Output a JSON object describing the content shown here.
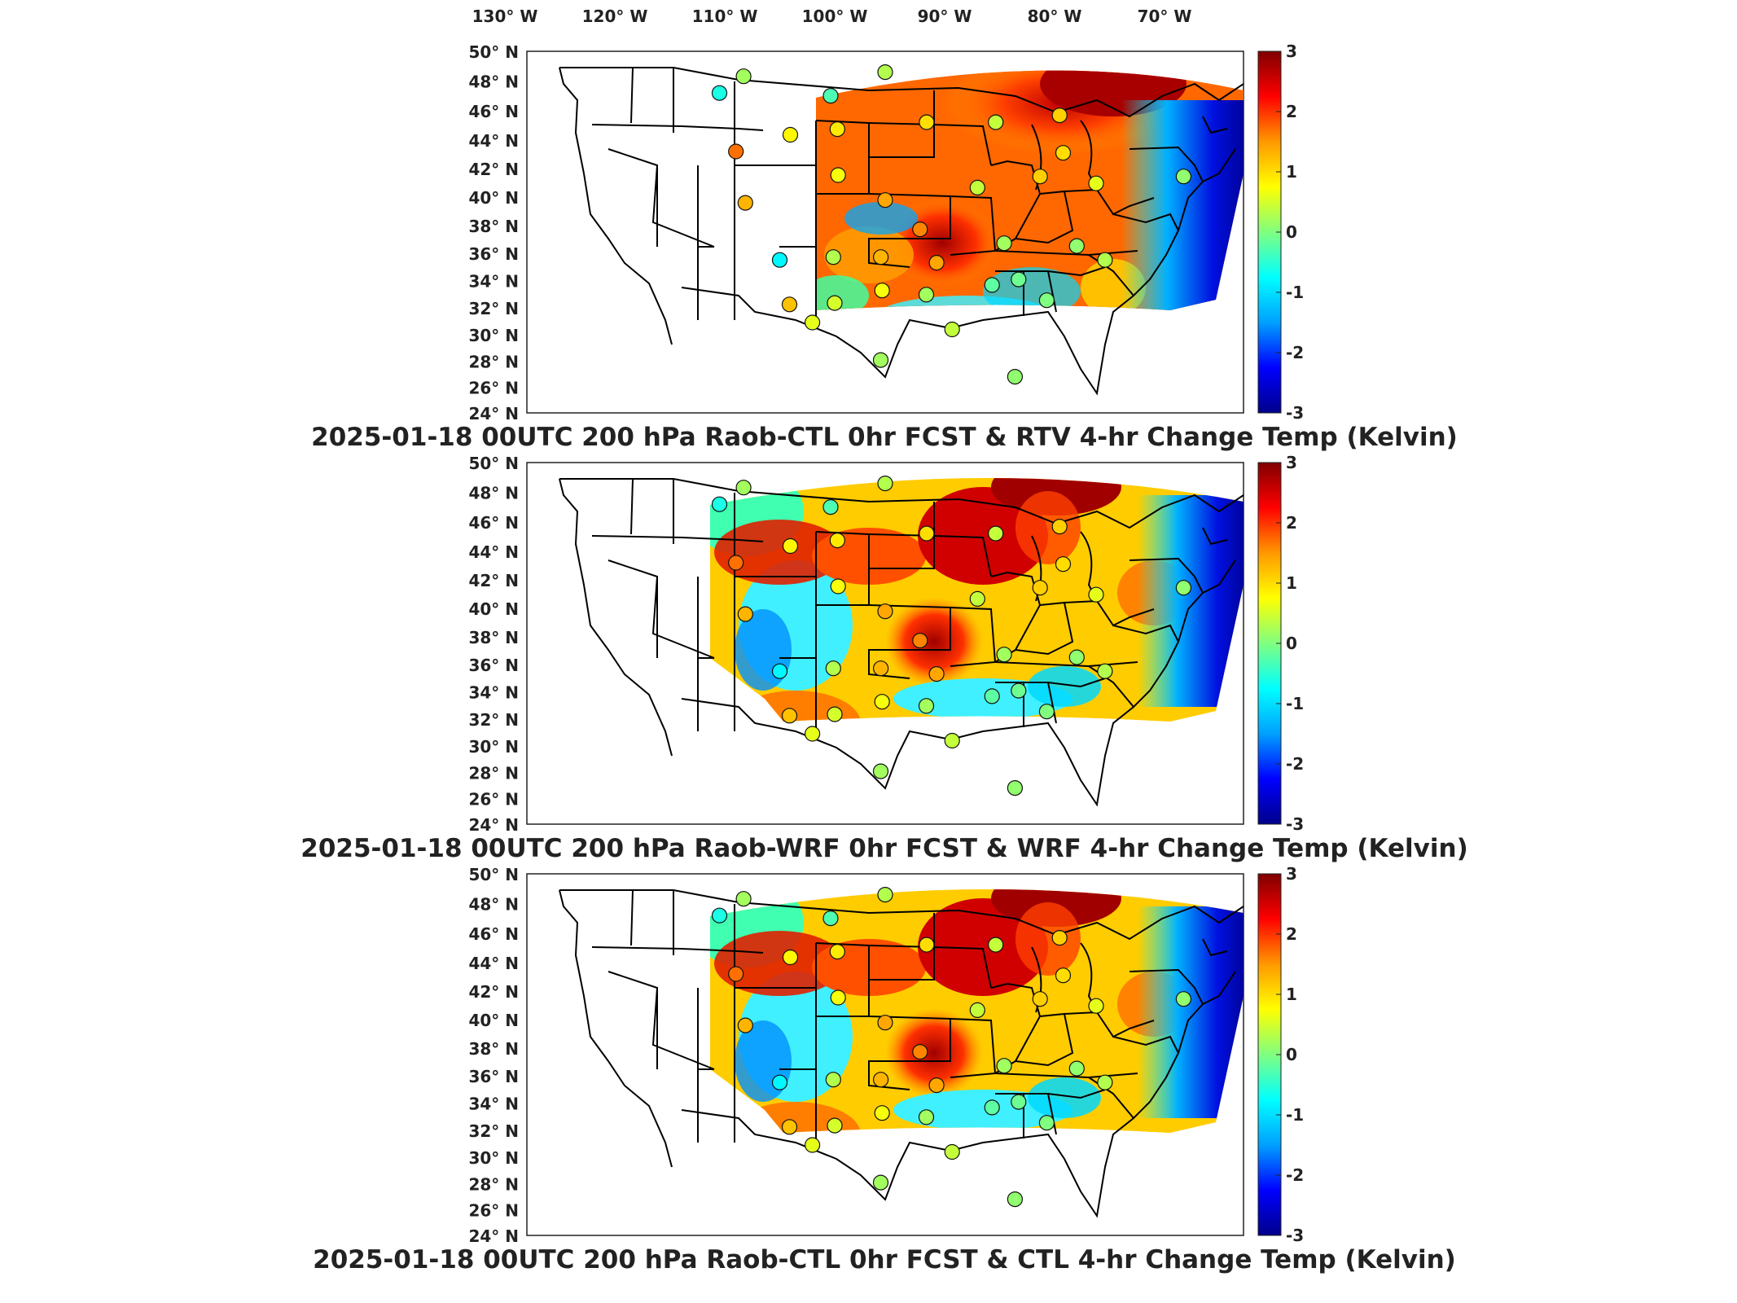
{
  "lon_labels": [
    "130° W",
    "120° W",
    "110° W",
    "100° W",
    "90° W",
    "80° W",
    "70° W"
  ],
  "lat_labels": [
    "50° N",
    "48° N",
    "46° N",
    "44° N",
    "42° N",
    "40° N",
    "38° N",
    "36° N",
    "34° N",
    "32° N",
    "30° N",
    "28° N",
    "26° N",
    "24° N"
  ],
  "colorbar": {
    "ticks": [
      "3",
      "2",
      "1",
      "0",
      "-1",
      "-2",
      "-3"
    ],
    "range": [
      -3,
      3
    ],
    "colormap": "jet",
    "stops": [
      "#00008b",
      "#0000ff",
      "#00a0ff",
      "#00ffff",
      "#80ff80",
      "#ffff00",
      "#ff9900",
      "#ff0000",
      "#800000"
    ]
  },
  "panels": [
    {
      "title": "2025-01-18 00UTC 200 hPa Raob-CTL 0hr FCST & RTV 4-hr Change Temp (Kelvin)"
    },
    {
      "title": "2025-01-18 00UTC 200 hPa Raob-WRF 0hr FCST & WRF 4-hr Change Temp (Kelvin)"
    },
    {
      "title": "2025-01-18 00UTC 200 hPa Raob-CTL 0hr FCST & CTL 4-hr Change Temp (Kelvin)"
    }
  ],
  "map": {
    "projection": "Lambert conformal, CONUS",
    "field_colors": {
      "panel1": [
        "#ff3a00",
        "#ff6000",
        "#c00000",
        "#ffb000",
        "#60ffa0"
      ],
      "panel2": [
        "#ffcc00",
        "#ff7a00",
        "#d00000",
        "#40ffc0",
        "#00d8ff"
      ],
      "panel3": [
        "#ffcc00",
        "#ff7a00",
        "#d00000",
        "#40ffc0",
        "#00d8ff"
      ]
    },
    "stations": [
      {
        "lon": -106.6,
        "lat": 48.2,
        "values": [
          0.2,
          0.2,
          0.2
        ]
      },
      {
        "lon": -108.5,
        "lat": 47.0,
        "values": [
          -0.6,
          -0.6,
          -0.6
        ]
      },
      {
        "lon": -100.8,
        "lat": 46.8,
        "values": [
          -0.3,
          -0.3,
          -0.3
        ]
      },
      {
        "lon": -97.0,
        "lat": 48.5,
        "values": [
          0.3,
          0.3,
          0.3
        ]
      },
      {
        "lon": -104.0,
        "lat": 44.0,
        "values": [
          0.8,
          0.8,
          0.8
        ]
      },
      {
        "lon": -108.3,
        "lat": 42.8,
        "values": [
          1.7,
          1.7,
          1.7
        ]
      },
      {
        "lon": -100.5,
        "lat": 44.4,
        "values": [
          0.9,
          0.9,
          0.9
        ]
      },
      {
        "lon": -94.0,
        "lat": 44.9,
        "values": [
          1.0,
          1.0,
          1.0
        ]
      },
      {
        "lon": -89.0,
        "lat": 44.9,
        "values": [
          0.4,
          0.4,
          0.4
        ]
      },
      {
        "lon": -84.5,
        "lat": 45.4,
        "values": [
          1.1,
          1.1,
          1.1
        ]
      },
      {
        "lon": -83.5,
        "lat": 42.7,
        "values": [
          1.0,
          1.0,
          1.0
        ]
      },
      {
        "lon": -100.7,
        "lat": 41.1,
        "values": [
          0.7,
          0.7,
          0.7
        ]
      },
      {
        "lon": -108.5,
        "lat": 39.1,
        "values": [
          1.3,
          1.3,
          1.3
        ]
      },
      {
        "lon": -97.0,
        "lat": 39.3,
        "values": [
          1.4,
          1.4,
          1.4
        ]
      },
      {
        "lon": -94.0,
        "lat": 37.2,
        "values": [
          1.6,
          1.6,
          1.6
        ]
      },
      {
        "lon": -89.6,
        "lat": 40.2,
        "values": [
          0.4,
          0.4,
          0.4
        ]
      },
      {
        "lon": -84.8,
        "lat": 41.0,
        "values": [
          1.1,
          1.1,
          1.1
        ]
      },
      {
        "lon": -80.2,
        "lat": 40.5,
        "values": [
          0.6,
          0.6,
          0.6
        ]
      },
      {
        "lon": -73.5,
        "lat": 41.0,
        "values": [
          0.1,
          0.1,
          0.1
        ]
      },
      {
        "lon": -106.6,
        "lat": 35.0,
        "values": [
          -0.8,
          -0.8,
          -0.8
        ]
      },
      {
        "lon": -101.7,
        "lat": 35.2,
        "values": [
          0.3,
          0.3,
          0.3
        ]
      },
      {
        "lon": -97.4,
        "lat": 35.2,
        "values": [
          1.3,
          1.3,
          1.3
        ]
      },
      {
        "lon": -92.3,
        "lat": 34.8,
        "values": [
          1.4,
          1.4,
          1.4
        ]
      },
      {
        "lon": -86.5,
        "lat": 36.2,
        "values": [
          0.2,
          0.2,
          0.2
        ]
      },
      {
        "lon": -80.0,
        "lat": 36.0,
        "values": [
          0.1,
          0.1,
          0.1
        ]
      },
      {
        "lon": -106.5,
        "lat": 31.8,
        "values": [
          1.2,
          1.2,
          1.2
        ]
      },
      {
        "lon": -102.0,
        "lat": 31.9,
        "values": [
          0.5,
          0.5,
          0.5
        ]
      },
      {
        "lon": -97.3,
        "lat": 32.8,
        "values": [
          0.7,
          0.7,
          0.7
        ]
      },
      {
        "lon": -93.0,
        "lat": 32.5,
        "values": [
          0.2,
          0.2,
          0.2
        ]
      },
      {
        "lon": -86.8,
        "lat": 33.2,
        "values": [
          -0.2,
          -0.2,
          -0.2
        ]
      },
      {
        "lon": -84.4,
        "lat": 33.6,
        "values": [
          -0.1,
          -0.1,
          -0.1
        ]
      },
      {
        "lon": -81.1,
        "lat": 32.1,
        "values": [
          0.0,
          0.0,
          0.0
        ]
      },
      {
        "lon": -77.0,
        "lat": 35.0,
        "values": [
          0.3,
          0.3,
          0.3
        ]
      },
      {
        "lon": -97.5,
        "lat": 27.8,
        "values": [
          0.2,
          0.2,
          0.2
        ]
      },
      {
        "lon": -81.9,
        "lat": 26.6,
        "values": [
          0.1,
          0.1,
          0.1
        ]
      },
      {
        "lon": -90.0,
        "lat": 30.0,
        "values": [
          0.4,
          0.4,
          0.4
        ]
      },
      {
        "lon": -104.5,
        "lat": 30.5,
        "values": [
          0.6,
          0.6,
          0.6
        ]
      }
    ]
  }
}
